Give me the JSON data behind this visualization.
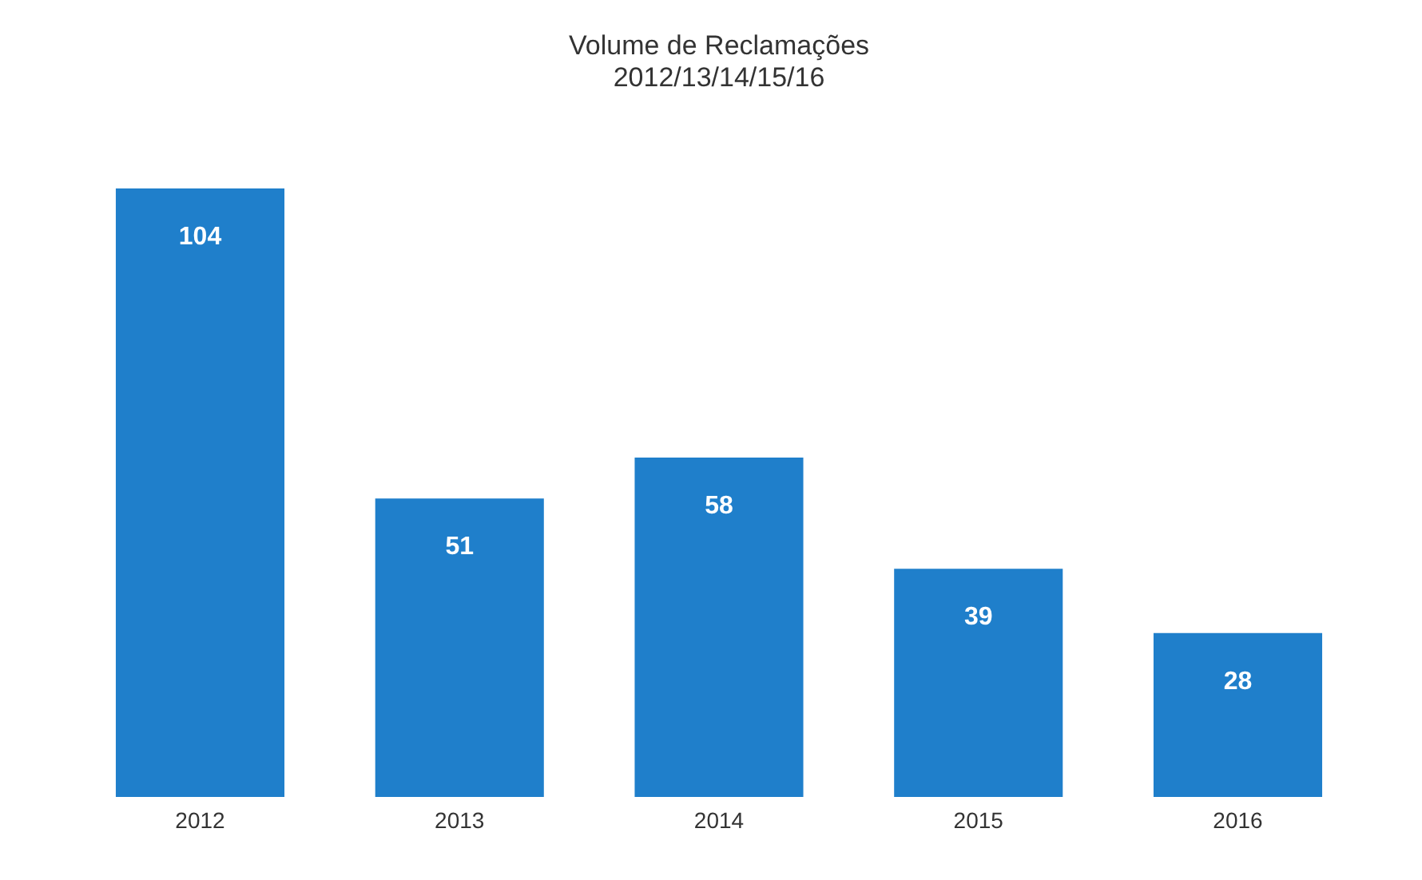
{
  "chart_data": {
    "type": "bar",
    "title": "Volume de Reclamações",
    "subtitle": "2012/13/14/15/16",
    "categories": [
      "2012",
      "2013",
      "2014",
      "2015",
      "2016"
    ],
    "values": [
      104,
      51,
      58,
      39,
      28
    ],
    "color": "#1f7fcb",
    "data_labels": true
  }
}
